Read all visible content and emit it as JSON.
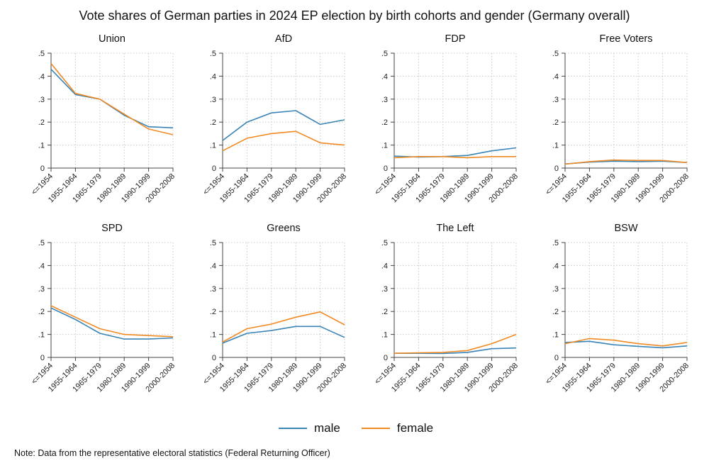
{
  "title": "Vote shares of German parties in 2024 EP election by birth cohorts and gender (Germany overall)",
  "note": "Note: Data from the representative electoral statistics (Federal Returning Officer)",
  "colors": {
    "male": "#3a84b6",
    "female": "#f08a24",
    "grid": "#c8c8c8",
    "axis": "#444444"
  },
  "chart_data": [
    {
      "type": "line",
      "title": "Union",
      "categories": [
        "<=1954",
        "1955-1964",
        "1965-1979",
        "1980-1989",
        "1990-1999",
        "2000-2008"
      ],
      "yticks": [
        "0",
        ".1",
        ".2",
        ".3",
        ".4",
        ".5"
      ],
      "ylim": [
        0,
        0.5
      ],
      "grid": true,
      "series": [
        {
          "name": "male",
          "values": [
            0.43,
            0.32,
            0.3,
            0.23,
            0.18,
            0.175
          ]
        },
        {
          "name": "female",
          "values": [
            0.455,
            0.325,
            0.3,
            0.235,
            0.17,
            0.145
          ]
        }
      ]
    },
    {
      "type": "line",
      "title": "AfD",
      "categories": [
        "<=1954",
        "1955-1964",
        "1965-1979",
        "1980-1989",
        "1990-1999",
        "2000-2008"
      ],
      "yticks": [
        "0",
        ".1",
        ".2",
        ".3",
        ".4",
        ".5"
      ],
      "ylim": [
        0,
        0.5
      ],
      "grid": true,
      "series": [
        {
          "name": "male",
          "values": [
            0.12,
            0.2,
            0.24,
            0.25,
            0.19,
            0.21
          ]
        },
        {
          "name": "female",
          "values": [
            0.075,
            0.13,
            0.15,
            0.16,
            0.11,
            0.1
          ]
        }
      ]
    },
    {
      "type": "line",
      "title": "FDP",
      "categories": [
        "<=1954",
        "1955-1964",
        "1965-1979",
        "1980-1989",
        "1990-1999",
        "2000-2008"
      ],
      "yticks": [
        "0",
        ".1",
        ".2",
        ".3",
        ".4",
        ".5"
      ],
      "ylim": [
        0,
        0.5
      ],
      "grid": true,
      "series": [
        {
          "name": "male",
          "values": [
            0.052,
            0.048,
            0.05,
            0.055,
            0.075,
            0.088
          ]
        },
        {
          "name": "female",
          "values": [
            0.045,
            0.05,
            0.05,
            0.045,
            0.05,
            0.05
          ]
        }
      ]
    },
    {
      "type": "line",
      "title": "Free Voters",
      "categories": [
        "<=1954",
        "1955-1964",
        "1965-1979",
        "1980-1989",
        "1990-1999",
        "2000-2008"
      ],
      "yticks": [
        "0",
        ".1",
        ".2",
        ".3",
        ".4",
        ".5"
      ],
      "ylim": [
        0,
        0.5
      ],
      "grid": true,
      "series": [
        {
          "name": "male",
          "values": [
            0.018,
            0.026,
            0.03,
            0.028,
            0.03,
            0.024
          ]
        },
        {
          "name": "female",
          "values": [
            0.017,
            0.028,
            0.035,
            0.033,
            0.033,
            0.024
          ]
        }
      ]
    },
    {
      "type": "line",
      "title": "SPD",
      "categories": [
        "<=1954",
        "1955-1964",
        "1965-1979",
        "1980-1989",
        "1990-1999",
        "2000-2008"
      ],
      "yticks": [
        "0",
        ".1",
        ".2",
        ".3",
        ".4",
        ".5"
      ],
      "ylim": [
        0,
        0.5
      ],
      "grid": true,
      "series": [
        {
          "name": "male",
          "values": [
            0.215,
            0.165,
            0.105,
            0.08,
            0.08,
            0.085
          ]
        },
        {
          "name": "female",
          "values": [
            0.225,
            0.175,
            0.125,
            0.1,
            0.095,
            0.09
          ]
        }
      ]
    },
    {
      "type": "line",
      "title": "Greens",
      "categories": [
        "<=1954",
        "1955-1964",
        "1965-1979",
        "1980-1989",
        "1990-1999",
        "2000-2008"
      ],
      "yticks": [
        "0",
        ".1",
        ".2",
        ".3",
        ".4",
        ".5"
      ],
      "ylim": [
        0,
        0.5
      ],
      "grid": true,
      "series": [
        {
          "name": "male",
          "values": [
            0.062,
            0.105,
            0.117,
            0.135,
            0.135,
            0.087
          ]
        },
        {
          "name": "female",
          "values": [
            0.067,
            0.125,
            0.145,
            0.175,
            0.198,
            0.142
          ]
        }
      ]
    },
    {
      "type": "line",
      "title": "The Left",
      "categories": [
        "<=1954",
        "1955-1964",
        "1965-1979",
        "1980-1989",
        "1990-1999",
        "2000-2008"
      ],
      "yticks": [
        "0",
        ".1",
        ".2",
        ".3",
        ".4",
        ".5"
      ],
      "ylim": [
        0,
        0.5
      ],
      "grid": true,
      "series": [
        {
          "name": "male",
          "values": [
            0.018,
            0.018,
            0.017,
            0.022,
            0.038,
            0.041
          ]
        },
        {
          "name": "female",
          "values": [
            0.018,
            0.02,
            0.022,
            0.03,
            0.06,
            0.1
          ]
        }
      ]
    },
    {
      "type": "line",
      "title": "BSW",
      "categories": [
        "<=1954",
        "1955-1964",
        "1965-1979",
        "1980-1989",
        "1990-1999",
        "2000-2008"
      ],
      "yticks": [
        "0",
        ".1",
        ".2",
        ".3",
        ".4",
        ".5"
      ],
      "ylim": [
        0,
        0.5
      ],
      "grid": true,
      "series": [
        {
          "name": "male",
          "values": [
            0.065,
            0.07,
            0.055,
            0.048,
            0.042,
            0.05
          ]
        },
        {
          "name": "female",
          "values": [
            0.06,
            0.082,
            0.075,
            0.06,
            0.05,
            0.065
          ]
        }
      ]
    }
  ],
  "legend": {
    "items": [
      {
        "label": "male",
        "color": "#3a84b6"
      },
      {
        "label": "female",
        "color": "#f08a24"
      }
    ]
  }
}
